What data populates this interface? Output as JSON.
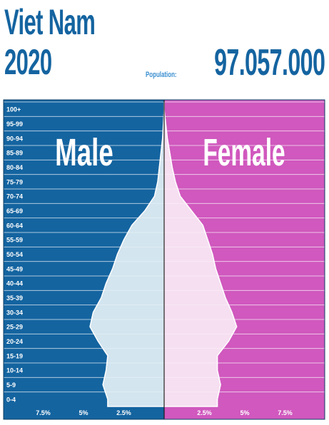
{
  "header": {
    "country": "Viet Nam",
    "year": "2020",
    "population_label": "Population:",
    "population_value": "97.057.000"
  },
  "colors": {
    "male": "#1464a0",
    "female": "#d058be",
    "male_fill": "#d3e5ef",
    "female_fill": "#f6dff1",
    "title": "#1464a0"
  },
  "chart_data": {
    "type": "bar",
    "orientation": "horizontal",
    "style": "population-pyramid",
    "categories": [
      "0-4",
      "5-9",
      "10-14",
      "15-19",
      "20-24",
      "25-29",
      "30-34",
      "35-39",
      "40-44",
      "45-49",
      "50-54",
      "55-59",
      "60-64",
      "65-69",
      "70-74",
      "75-79",
      "80-84",
      "85-89",
      "90-94",
      "95-99",
      "100+"
    ],
    "series": [
      {
        "name": "Male",
        "values": [
          3.5,
          3.8,
          3.6,
          3.5,
          4.1,
          4.6,
          4.4,
          3.9,
          3.6,
          3.2,
          2.9,
          2.5,
          2.0,
          1.2,
          0.6,
          0.4,
          0.3,
          0.2,
          0.1,
          0.05,
          0.0
        ]
      },
      {
        "name": "Female",
        "values": [
          3.3,
          3.5,
          3.3,
          3.3,
          4.0,
          4.5,
          4.2,
          3.8,
          3.5,
          3.2,
          3.0,
          2.7,
          2.4,
          1.7,
          1.0,
          0.7,
          0.5,
          0.35,
          0.2,
          0.1,
          0.0
        ]
      }
    ],
    "x_ticks_male": [
      "7.5%",
      "5%",
      "2.5%"
    ],
    "x_ticks_female": [
      "2.5%",
      "5%",
      "7.5%"
    ],
    "xlim": [
      0,
      10
    ],
    "units": "%"
  }
}
